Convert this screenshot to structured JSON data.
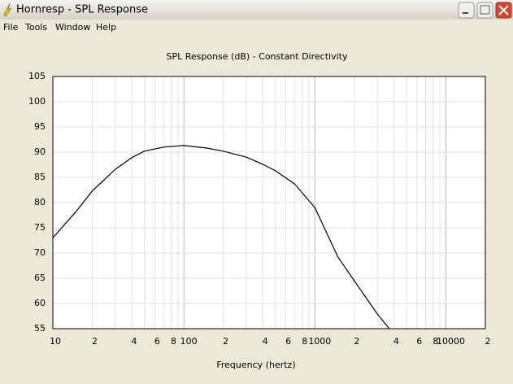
{
  "window": {
    "title": "Hornresp - SPL Response",
    "menu": [
      "File",
      "Tools",
      "Window",
      "Help"
    ]
  },
  "chart_data": {
    "type": "line",
    "title": "SPL Response (dB) - Constant Directivity",
    "x_label": "Frequency (hertz)",
    "xscale": "log",
    "grid": true,
    "color": "#000000",
    "x": [
      10,
      15,
      20,
      30,
      40,
      50,
      70,
      100,
      150,
      200,
      300,
      400,
      500,
      700,
      1000,
      1500,
      2000,
      3000,
      3700
    ],
    "values": [
      73,
      78.2,
      82.3,
      86.6,
      88.9,
      90.2,
      91,
      91.3,
      90.8,
      90.2,
      89,
      87.6,
      86.3,
      83.7,
      79,
      69.2,
      64.5,
      57.9,
      55
    ],
    "xlim": [
      10,
      20000
    ],
    "ylim": [
      55,
      105
    ],
    "xticks": [
      10,
      {
        "value": 20,
        "label": "2"
      },
      {
        "value": 40,
        "label": "4"
      },
      {
        "value": 60,
        "label": "6"
      },
      {
        "value": 80,
        "label": "8"
      },
      100,
      {
        "value": 200,
        "label": "2"
      },
      {
        "value": 400,
        "label": "4"
      },
      {
        "value": 600,
        "label": "6"
      },
      {
        "value": 800,
        "label": "8"
      },
      1000,
      {
        "value": 2000,
        "label": "2"
      },
      {
        "value": 4000,
        "label": "4"
      },
      {
        "value": 6000,
        "label": "6"
      },
      {
        "value": 8000,
        "label": "8"
      },
      10000,
      {
        "value": 20000,
        "label": "2"
      }
    ],
    "x_minor_grid": [
      30,
      50,
      70,
      90,
      300,
      500,
      700,
      900,
      3000,
      5000,
      7000,
      9000
    ],
    "yticks": [
      55,
      60,
      65,
      70,
      75,
      80,
      85,
      90,
      95,
      100,
      105
    ]
  }
}
